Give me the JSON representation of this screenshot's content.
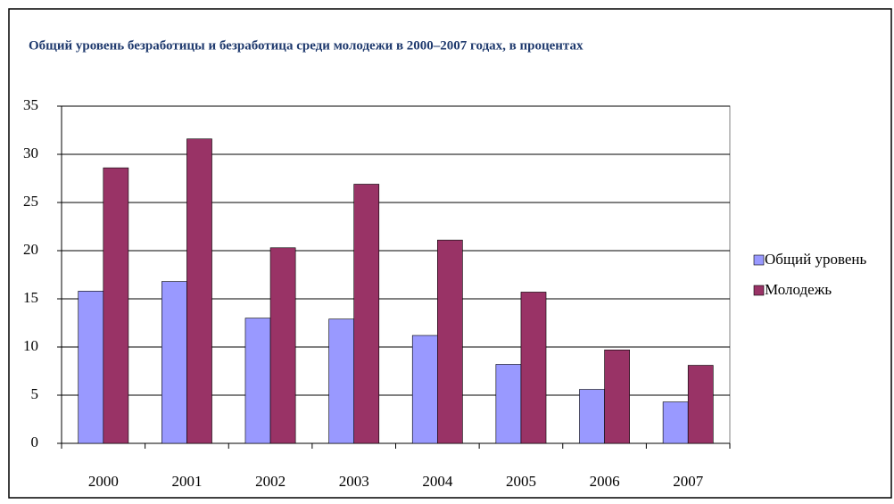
{
  "chart_data": {
    "type": "bar",
    "title": "Общий уровень безработицы и безработица среди молодежи в 2000–2007 годах, в процентах",
    "categories": [
      "2000",
      "2001",
      "2002",
      "2003",
      "2004",
      "2005",
      "2006",
      "2007"
    ],
    "series": [
      {
        "name": "Общий уровень",
        "color": "#9999ff",
        "values": [
          15.8,
          16.8,
          13.0,
          12.9,
          11.2,
          8.2,
          5.6,
          4.3
        ]
      },
      {
        "name": "Молодежь",
        "color": "#993366",
        "values": [
          28.6,
          31.6,
          20.3,
          26.9,
          21.1,
          15.7,
          9.7,
          8.1
        ]
      }
    ],
    "ylim": [
      0,
      35
    ],
    "yticks": [
      0,
      5,
      10,
      15,
      20,
      25,
      30,
      35
    ],
    "grid": true,
    "legend": "right"
  }
}
